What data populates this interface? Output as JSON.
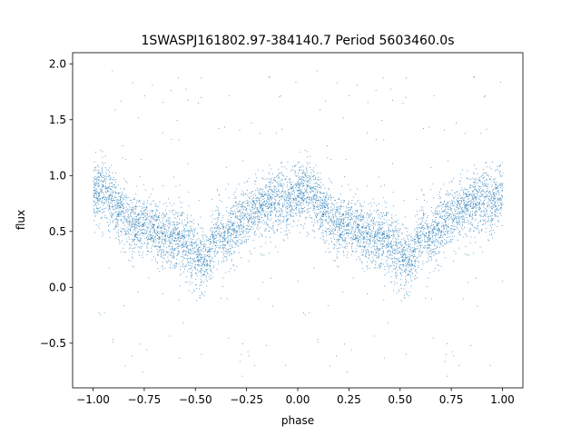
{
  "chart_data": {
    "type": "scatter",
    "title": "1SWASPJ161802.97-384140.7 Period 5603460.0s",
    "xlabel": "phase",
    "ylabel": "flux",
    "xlim": [
      -1.1,
      1.1
    ],
    "ylim": [
      -0.9,
      2.1
    ],
    "xticks": [
      -1.0,
      -0.75,
      -0.5,
      -0.25,
      0.0,
      0.25,
      0.5,
      0.75,
      1.0
    ],
    "xtick_labels": [
      "−1.00",
      "−0.75",
      "−0.50",
      "−0.25",
      "0.00",
      "0.25",
      "0.50",
      "0.75",
      "1.00"
    ],
    "yticks": [
      -0.5,
      0.0,
      0.5,
      1.0,
      1.5,
      2.0
    ],
    "ytick_labels": [
      "−0.5",
      "0.0",
      "0.5",
      "1.0",
      "1.5",
      "2.0"
    ],
    "grid": false,
    "marker_color": "#1f77b4",
    "trend_phase": [
      0.0,
      0.05,
      0.1,
      0.15,
      0.2,
      0.25,
      0.3,
      0.35,
      0.4,
      0.45,
      0.5,
      0.55,
      0.6,
      0.65,
      0.7,
      0.75,
      0.8,
      0.85,
      0.9,
      0.95,
      1.0
    ],
    "trend_flux": [
      0.85,
      0.85,
      0.75,
      0.65,
      0.55,
      0.55,
      0.5,
      0.45,
      0.45,
      0.4,
      0.3,
      0.2,
      0.5,
      0.45,
      0.55,
      0.65,
      0.7,
      0.75,
      0.8,
      0.75,
      0.85
    ],
    "flux_spread": 0.25,
    "outlier_flux_range": [
      -0.8,
      1.95
    ]
  }
}
